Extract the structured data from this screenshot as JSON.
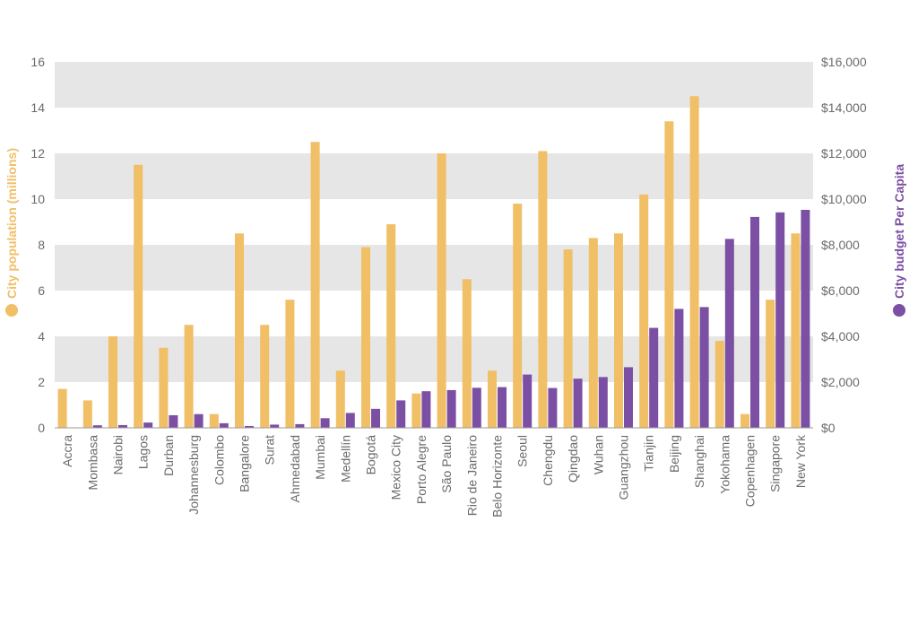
{
  "chart_data": {
    "type": "bar",
    "title": "",
    "categories": [
      "Accra",
      "Mombasa",
      "Nairobi",
      "Lagos",
      "Durban",
      "Johannesburg",
      "Colombo",
      "Bangalore",
      "Surat",
      "Ahmedabad",
      "Mumbai",
      "Medellín",
      "Bogotá",
      "Mexico City",
      "Porto Alegre",
      "São Paulo",
      "Rio de Janeiro",
      "Belo Horizonte",
      "Seoul",
      "Chengdu",
      "Qingdao",
      "Wuhan",
      "Guangzhou",
      "Tianjin",
      "Beijing",
      "Shanghai",
      "Yokohama",
      "Copenhagen",
      "Singapore",
      "New York"
    ],
    "series": [
      {
        "name": "City population (millions)",
        "axis": "left",
        "color": "#F0BF66",
        "values": [
          1.7,
          1.2,
          4.0,
          11.5,
          3.5,
          4.5,
          0.6,
          8.5,
          4.5,
          5.6,
          12.5,
          2.5,
          7.9,
          8.9,
          1.5,
          12.0,
          6.5,
          2.5,
          9.8,
          12.1,
          7.8,
          8.3,
          8.5,
          10.2,
          13.4,
          14.5,
          3.8,
          0.6,
          5.6,
          8.5
        ]
      },
      {
        "name": "City budget Per Capita",
        "axis": "right",
        "color": "#7B4FA3",
        "values": [
          20,
          110,
          120,
          230,
          550,
          600,
          200,
          80,
          140,
          160,
          420,
          650,
          830,
          1200,
          1600,
          1650,
          1750,
          1780,
          2330,
          1740,
          2150,
          2220,
          2650,
          4370,
          5200,
          5280,
          8260,
          9220,
          9420,
          9530
        ]
      }
    ],
    "y_left": {
      "label": "City population (millions)",
      "ylim": [
        0,
        16
      ],
      "ticks": [
        "0",
        "2",
        "4",
        "6",
        "8",
        "10",
        "12",
        "14",
        "16"
      ]
    },
    "y_right": {
      "label": "City budget Per Capita",
      "ylim": [
        0,
        16000
      ],
      "ticks": [
        "$0",
        "$2,000",
        "$4,000",
        "$6,000",
        "$8,000",
        "$10,000",
        "$12,000",
        "$14,000",
        "$16,000"
      ]
    },
    "grid": "alternating horizontal bands",
    "legend": "axis titles with colored dots"
  }
}
